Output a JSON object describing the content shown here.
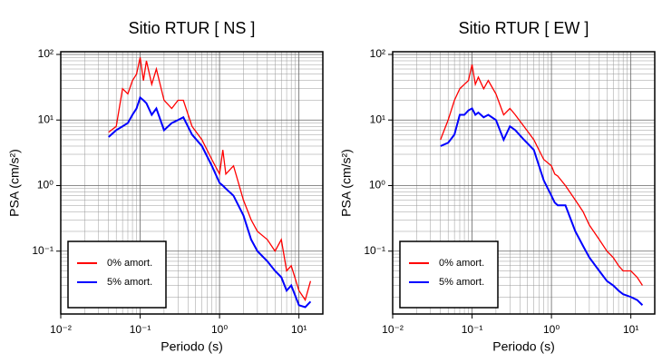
{
  "chart_data": [
    {
      "type": "line",
      "title": "Sitio RTUR [ NS ]",
      "x_label": "Periodo (s)",
      "y_label": "PSA (cm/s²)",
      "log_x": true,
      "log_y": true,
      "grid": true,
      "legend": "lower left",
      "xlim": [
        0.01,
        20
      ],
      "ylim": [
        0.011,
        110
      ],
      "xticks": [
        {
          "value": 0.01,
          "label": "10⁻²"
        },
        {
          "value": 0.1,
          "label": "10⁻¹"
        },
        {
          "value": 1,
          "label": "10⁰"
        },
        {
          "value": 10,
          "label": "10¹"
        }
      ],
      "yticks": [
        {
          "value": 0.1,
          "label": "10⁻¹"
        },
        {
          "value": 1,
          "label": "10⁰"
        },
        {
          "value": 10,
          "label": "10¹"
        },
        {
          "value": 100,
          "label": "10²"
        }
      ],
      "x": [
        0.04,
        0.05,
        0.06,
        0.07,
        0.08,
        0.09,
        0.1,
        0.11,
        0.12,
        0.14,
        0.16,
        0.2,
        0.25,
        0.3,
        0.35,
        0.45,
        0.6,
        0.8,
        1.0,
        1.1,
        1.2,
        1.5,
        2,
        2.5,
        3,
        4,
        5,
        6,
        7,
        8,
        10,
        12,
        14
      ],
      "series": [
        {
          "name": "0% amort.",
          "color": "#ff0000",
          "values": [
            6.5,
            8,
            30,
            25,
            40,
            50,
            90,
            40,
            80,
            35,
            60,
            20,
            15,
            20,
            20,
            8,
            5,
            2.5,
            1.5,
            3.5,
            1.5,
            2,
            0.6,
            0.3,
            0.2,
            0.15,
            0.1,
            0.15,
            0.05,
            0.06,
            0.025,
            0.018,
            0.035
          ]
        },
        {
          "name": "5% amort.",
          "color": "#0000ff",
          "values": [
            5.5,
            7,
            8,
            9,
            12,
            15,
            22,
            20,
            18,
            12,
            15,
            7,
            9,
            10,
            11,
            6,
            4,
            2,
            1.1,
            1,
            0.9,
            0.7,
            0.35,
            0.15,
            0.1,
            0.07,
            0.05,
            0.04,
            0.025,
            0.03,
            0.015,
            0.014,
            0.017
          ]
        }
      ]
    },
    {
      "type": "line",
      "title": "Sitio RTUR [ EW ]",
      "x_label": "Periodo (s)",
      "y_label": "PSA (cm/s²)",
      "log_x": true,
      "log_y": true,
      "grid": true,
      "legend": "lower left",
      "xlim": [
        0.01,
        20
      ],
      "ylim": [
        0.011,
        110
      ],
      "xticks": [
        {
          "value": 0.01,
          "label": "10⁻²"
        },
        {
          "value": 0.1,
          "label": "10⁻¹"
        },
        {
          "value": 1,
          "label": "10⁰"
        },
        {
          "value": 10,
          "label": "10¹"
        }
      ],
      "yticks": [
        {
          "value": 0.1,
          "label": "10⁻¹"
        },
        {
          "value": 1,
          "label": "10⁰"
        },
        {
          "value": 10,
          "label": "10¹"
        },
        {
          "value": 100,
          "label": "10²"
        }
      ],
      "x": [
        0.04,
        0.05,
        0.06,
        0.07,
        0.08,
        0.09,
        0.1,
        0.11,
        0.12,
        0.14,
        0.16,
        0.2,
        0.25,
        0.3,
        0.35,
        0.45,
        0.6,
        0.8,
        1.0,
        1.1,
        1.2,
        1.5,
        2,
        2.5,
        3,
        4,
        5,
        6,
        7,
        8,
        10,
        12,
        14
      ],
      "series": [
        {
          "name": "0% amort.",
          "color": "#ff0000",
          "values": [
            5,
            10,
            20,
            30,
            35,
            40,
            70,
            35,
            45,
            30,
            40,
            25,
            12,
            15,
            12,
            8,
            5,
            2.5,
            2,
            1.5,
            1.4,
            1,
            0.6,
            0.4,
            0.25,
            0.15,
            0.1,
            0.08,
            0.06,
            0.05,
            0.05,
            0.04,
            0.03
          ]
        },
        {
          "name": "5% amort.",
          "color": "#0000ff",
          "values": [
            4,
            4.5,
            6,
            12,
            12,
            14,
            15,
            12,
            13,
            11,
            12,
            10,
            5,
            8,
            7,
            5,
            3.5,
            1.2,
            0.7,
            0.55,
            0.5,
            0.5,
            0.2,
            0.12,
            0.08,
            0.05,
            0.035,
            0.03,
            0.025,
            0.022,
            0.02,
            0.018,
            0.015
          ]
        }
      ]
    }
  ]
}
